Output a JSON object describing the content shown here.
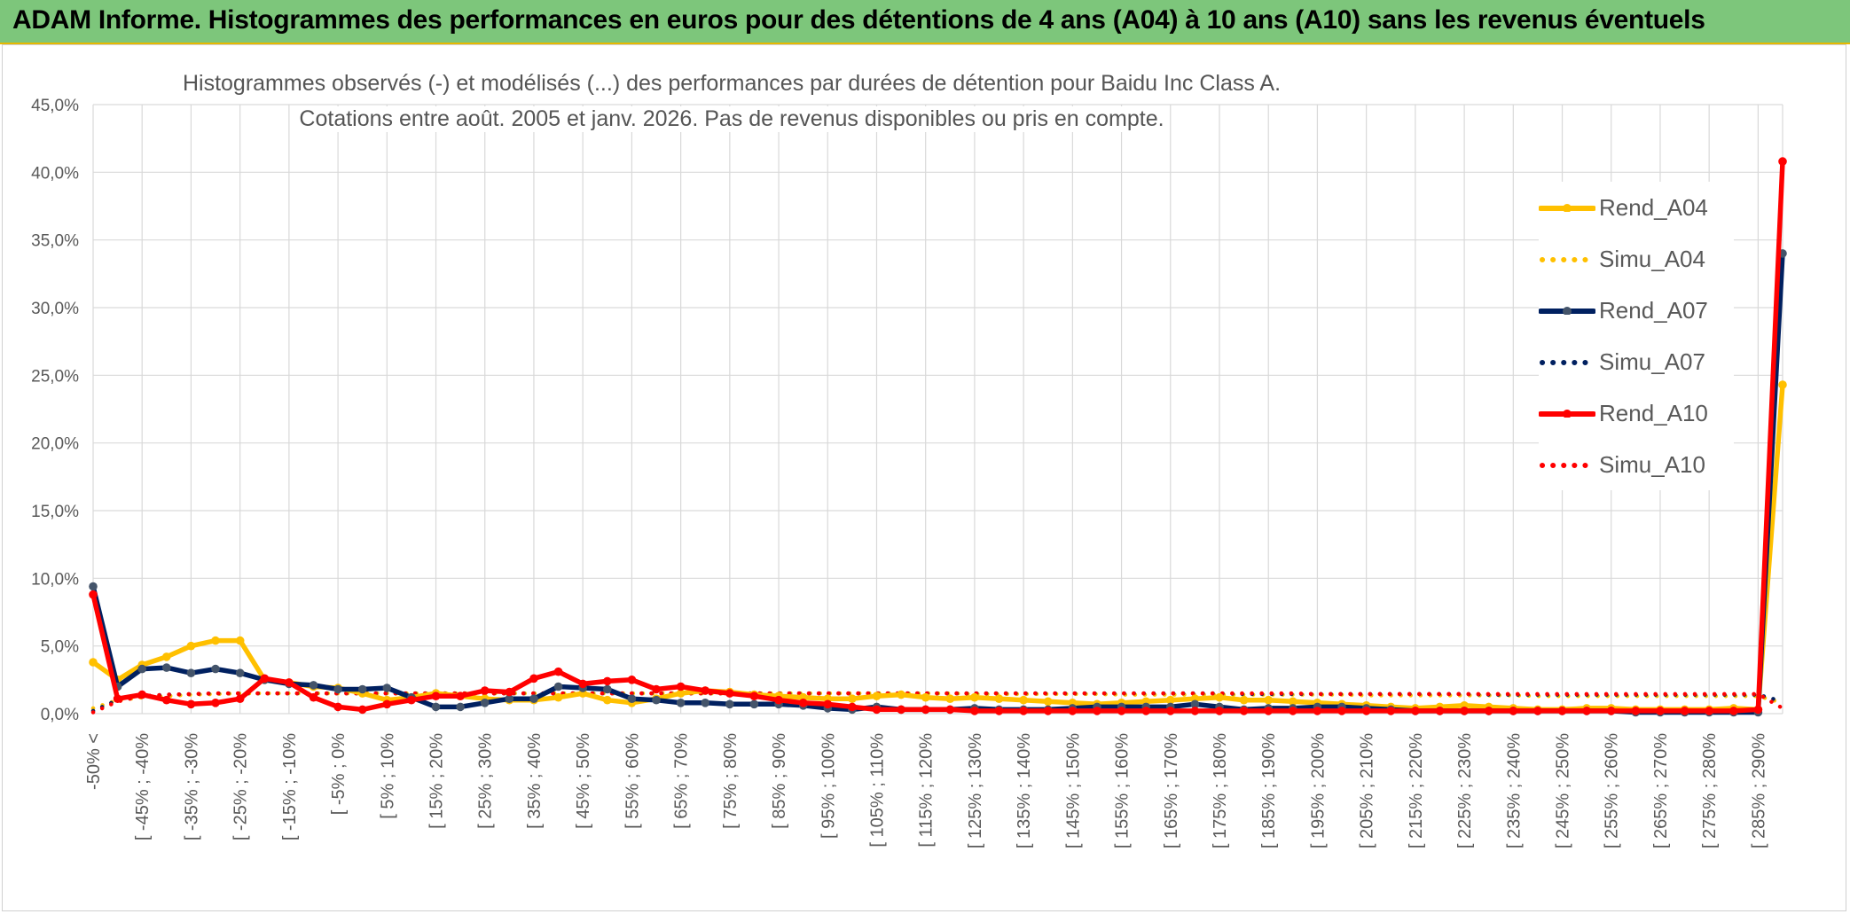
{
  "banner": {
    "title": "ADAM Informe. Histogrammes des performances en euros pour des détentions de 4 ans (A04) à 10 ans (A10) sans les revenus éventuels"
  },
  "colors": {
    "banner_bg": "#7dc67b",
    "A04": "#ffc000",
    "A07": "#002060",
    "A10": "#ff0000",
    "grid": "#d9d9d9",
    "axis_text": "#595959"
  },
  "chart_data": {
    "type": "line",
    "title_line1": "Histogrammes observés (-) et modélisés (...) des performances par durées de détention pour Baidu Inc Class A.",
    "title_line2": "Cotations entre août. 2005 et janv. 2026. Pas de revenus disponibles ou pris en compte.",
    "ylim": [
      0,
      45
    ],
    "y_ticks": [
      "0,0%",
      "5,0%",
      "10,0%",
      "15,0%",
      "20,0%",
      "25,0%",
      "30,0%",
      "35,0%",
      "40,0%",
      "45,0%"
    ],
    "y_tick_values": [
      0,
      5,
      10,
      15,
      20,
      25,
      30,
      35,
      40,
      45
    ],
    "x_labels_shown": [
      "-50% <",
      "[ -45% ; -40%",
      "[ -35% ; -30%",
      "[ -25% ; -20%",
      "[ -15% ; -10%",
      "[ -5% ; 0%",
      "[ 5% ; 10%",
      "[ 15% ; 20%",
      "[ 25% ; 30%",
      "[ 35% ; 40%",
      "[ 45% ; 50%",
      "[ 55% ; 60%",
      "[ 65% ; 70%",
      "[ 75% ; 80%",
      "[ 85% ; 90%",
      "[ 95% ; 100%",
      "[ 105% ; 110%",
      "[ 115% ; 120%",
      "[ 125% ; 130%",
      "[ 135% ; 140%",
      "[ 145% ; 150%",
      "[ 155% ; 160%",
      "[ 165% ; 170%",
      "[ 175% ; 180%",
      "[ 185% ; 190%",
      "[ 195% ; 200%",
      "[ 205% ; 210%",
      "[ 215% ; 220%",
      "[ 225% ; 230%",
      "[ 235% ; 240%",
      "[ 245% ; 250%",
      "[ 255% ; 260%",
      "[ 265% ; 270%",
      "[ 275% ; 280%",
      "[ 285% ; 290%"
    ],
    "category_count": 70,
    "series": [
      {
        "name": "Rend_A04",
        "style": "solid",
        "markers": true,
        "color": "#ffc000",
        "values": [
          3.8,
          2.5,
          3.6,
          4.2,
          5.0,
          5.4,
          5.4,
          2.5,
          2.3,
          2.0,
          1.9,
          1.5,
          1.0,
          1.2,
          1.5,
          1.3,
          1.1,
          1.0,
          1.0,
          1.2,
          1.5,
          1.0,
          0.8,
          1.1,
          1.5,
          1.7,
          1.6,
          1.4,
          1.3,
          1.2,
          1.1,
          1.1,
          1.3,
          1.4,
          1.2,
          1.1,
          1.2,
          1.1,
          1.0,
          0.9,
          0.8,
          0.7,
          0.8,
          0.9,
          1.0,
          1.1,
          1.2,
          1.0,
          1.0,
          0.9,
          0.8,
          0.7,
          0.6,
          0.5,
          0.4,
          0.5,
          0.6,
          0.5,
          0.4,
          0.3,
          0.3,
          0.4,
          0.4,
          0.3,
          0.3,
          0.3,
          0.3,
          0.4,
          0.3,
          24.3
        ]
      },
      {
        "name": "Simu_A04",
        "style": "dotted",
        "markers": false,
        "color": "#ffc000",
        "values": [
          0.4,
          1.0,
          1.2,
          1.3,
          1.4,
          1.45,
          1.5,
          1.5,
          1.5,
          1.5,
          1.5,
          1.5,
          1.5,
          1.5,
          1.5,
          1.5,
          1.5,
          1.5,
          1.5,
          1.5,
          1.5,
          1.5,
          1.5,
          1.5,
          1.5,
          1.5,
          1.5,
          1.5,
          1.5,
          1.5,
          1.5,
          1.5,
          1.5,
          1.5,
          1.5,
          1.5,
          1.45,
          1.45,
          1.45,
          1.45,
          1.45,
          1.45,
          1.4,
          1.4,
          1.4,
          1.4,
          1.4,
          1.4,
          1.4,
          1.4,
          1.4,
          1.4,
          1.35,
          1.35,
          1.35,
          1.35,
          1.35,
          1.35,
          1.35,
          1.3,
          1.3,
          1.3,
          1.3,
          1.3,
          1.3,
          1.3,
          1.3,
          1.3,
          1.3,
          0.8
        ]
      },
      {
        "name": "Rend_A07",
        "style": "solid",
        "markers": true,
        "color": "#002060",
        "values": [
          9.4,
          2.0,
          3.3,
          3.4,
          3.0,
          3.3,
          3.0,
          2.5,
          2.2,
          2.1,
          1.8,
          1.8,
          1.9,
          1.2,
          0.5,
          0.5,
          0.8,
          1.1,
          1.1,
          2.0,
          1.9,
          1.8,
          1.1,
          1.0,
          0.8,
          0.8,
          0.7,
          0.7,
          0.7,
          0.6,
          0.4,
          0.3,
          0.5,
          0.3,
          0.3,
          0.3,
          0.4,
          0.3,
          0.3,
          0.3,
          0.4,
          0.5,
          0.5,
          0.5,
          0.5,
          0.7,
          0.5,
          0.3,
          0.4,
          0.4,
          0.5,
          0.5,
          0.4,
          0.3,
          0.2,
          0.2,
          0.2,
          0.2,
          0.2,
          0.2,
          0.2,
          0.2,
          0.2,
          0.1,
          0.1,
          0.1,
          0.1,
          0.1,
          0.1,
          34.0
        ]
      },
      {
        "name": "Simu_A07",
        "style": "dotted",
        "markers": false,
        "color": "#002060",
        "values": [
          0.2,
          1.0,
          1.3,
          1.4,
          1.45,
          1.5,
          1.5,
          1.5,
          1.5,
          1.5,
          1.5,
          1.5,
          1.5,
          1.5,
          1.5,
          1.5,
          1.5,
          1.5,
          1.5,
          1.5,
          1.5,
          1.5,
          1.5,
          1.5,
          1.5,
          1.5,
          1.5,
          1.5,
          1.5,
          1.5,
          1.5,
          1.5,
          1.5,
          1.5,
          1.5,
          1.5,
          1.5,
          1.5,
          1.5,
          1.5,
          1.5,
          1.5,
          1.5,
          1.5,
          1.5,
          1.5,
          1.5,
          1.45,
          1.45,
          1.45,
          1.45,
          1.45,
          1.45,
          1.45,
          1.45,
          1.45,
          1.45,
          1.4,
          1.4,
          1.4,
          1.4,
          1.4,
          1.4,
          1.4,
          1.4,
          1.4,
          1.4,
          1.4,
          1.4,
          0.9
        ]
      },
      {
        "name": "Rend_A10",
        "style": "solid",
        "markers": true,
        "color": "#ff0000",
        "values": [
          8.8,
          1.1,
          1.4,
          1.0,
          0.7,
          0.8,
          1.1,
          2.6,
          2.3,
          1.2,
          0.5,
          0.3,
          0.7,
          1.0,
          1.3,
          1.3,
          1.7,
          1.6,
          2.6,
          3.1,
          2.2,
          2.4,
          2.5,
          1.8,
          2.0,
          1.7,
          1.5,
          1.3,
          1.0,
          0.8,
          0.7,
          0.5,
          0.3,
          0.3,
          0.3,
          0.3,
          0.2,
          0.2,
          0.2,
          0.2,
          0.2,
          0.2,
          0.2,
          0.2,
          0.2,
          0.2,
          0.2,
          0.2,
          0.2,
          0.2,
          0.2,
          0.2,
          0.2,
          0.2,
          0.2,
          0.2,
          0.2,
          0.2,
          0.2,
          0.2,
          0.2,
          0.2,
          0.2,
          0.2,
          0.2,
          0.2,
          0.2,
          0.2,
          0.3,
          40.8
        ]
      },
      {
        "name": "Simu_A10",
        "style": "dotted",
        "markers": false,
        "color": "#ff0000",
        "values": [
          0.1,
          0.9,
          1.3,
          1.4,
          1.45,
          1.5,
          1.5,
          1.5,
          1.5,
          1.5,
          1.5,
          1.5,
          1.5,
          1.5,
          1.5,
          1.5,
          1.5,
          1.5,
          1.5,
          1.5,
          1.5,
          1.5,
          1.5,
          1.5,
          1.5,
          1.5,
          1.5,
          1.5,
          1.5,
          1.5,
          1.5,
          1.5,
          1.5,
          1.5,
          1.5,
          1.5,
          1.5,
          1.5,
          1.5,
          1.5,
          1.5,
          1.5,
          1.5,
          1.5,
          1.5,
          1.5,
          1.5,
          1.5,
          1.5,
          1.5,
          1.45,
          1.45,
          1.45,
          1.45,
          1.45,
          1.45,
          1.45,
          1.45,
          1.45,
          1.45,
          1.45,
          1.45,
          1.45,
          1.45,
          1.45,
          1.45,
          1.45,
          1.45,
          1.45,
          0.4
        ]
      }
    ],
    "legend": [
      "Rend_A04",
      "Simu_A04",
      "Rend_A07",
      "Simu_A07",
      "Rend_A10",
      "Simu_A10"
    ]
  }
}
